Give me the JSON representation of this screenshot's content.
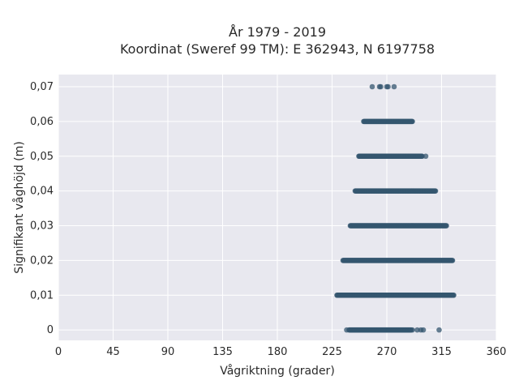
{
  "chart_data": {
    "type": "scatter",
    "title_lines": [
      "År 1979 - 2019",
      "Koordinat (Sweref 99 TM): E 362943, N 6197758"
    ],
    "xlabel": "Vågriktning (grader)",
    "ylabel": "Signifikant våghöjd (m)",
    "xlim": [
      0,
      360
    ],
    "ylim": [
      -0.003,
      0.0735
    ],
    "x_ticks": [
      0,
      45,
      90,
      135,
      180,
      225,
      270,
      315,
      360
    ],
    "x_tick_labels": [
      "0",
      "45",
      "90",
      "135",
      "180",
      "225",
      "270",
      "315",
      "360"
    ],
    "y_ticks": [
      0,
      0.01,
      0.02,
      0.03,
      0.04,
      0.05,
      0.06,
      0.07
    ],
    "y_tick_labels": [
      "0",
      "0,01",
      "0,02",
      "0,03",
      "0,04",
      "0,05",
      "0,06",
      "0,07"
    ],
    "grid": true,
    "background": "#e8e8ef",
    "marker_color": "#34566f",
    "bands": [
      {
        "y": 0.07,
        "x_min": 258,
        "x_max": 276,
        "discrete_x": [
          258,
          264,
          265,
          270,
          271,
          276
        ]
      },
      {
        "y": 0.06,
        "x_min": 251,
        "x_max": 291
      },
      {
        "y": 0.05,
        "x_min": 247,
        "x_max": 299,
        "discrete_x": [
          302
        ]
      },
      {
        "y": 0.04,
        "x_min": 244,
        "x_max": 310
      },
      {
        "y": 0.03,
        "x_min": 240,
        "x_max": 319
      },
      {
        "y": 0.02,
        "x_min": 234,
        "x_max": 324
      },
      {
        "y": 0.01,
        "x_min": 229,
        "x_max": 325
      },
      {
        "y": 0.0,
        "x_min": 239,
        "x_max": 290,
        "discrete_x": [
          237,
          291,
          295,
          298,
          300,
          313
        ]
      }
    ]
  }
}
